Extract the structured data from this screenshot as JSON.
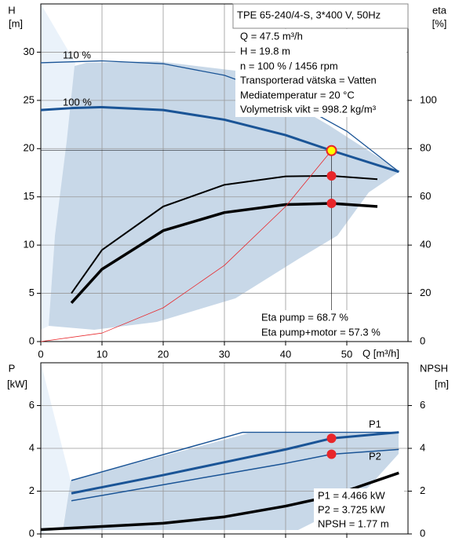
{
  "chart_data": [
    {
      "type": "line",
      "xlabel": "Q [m³/h]",
      "ylabel": [
        "H",
        "[m]"
      ],
      "y2label": [
        "eta",
        "[%]"
      ],
      "xlim": [
        0,
        60
      ],
      "ylim": [
        0,
        35
      ],
      "y2lim": [
        0,
        140
      ],
      "xticks": [
        0,
        10,
        20,
        30,
        40,
        50
      ],
      "yticks": [
        0,
        5,
        10,
        15,
        20,
        25,
        30
      ],
      "y2ticks": [
        0,
        20,
        40,
        60,
        80,
        100
      ],
      "grid": true,
      "xtick_labels": true,
      "series": [
        {
          "name": "110 %",
          "color": "#1a5496",
          "width": 1.3,
          "x": [
            0,
            10,
            20,
            30,
            40,
            50,
            58.5
          ],
          "values": [
            28.9,
            29.1,
            28.8,
            27.6,
            25.3,
            21.8,
            17.6
          ]
        },
        {
          "name": "100 %",
          "color": "#1a5496",
          "width": 3,
          "x": [
            0,
            5,
            10,
            20,
            30,
            40,
            47.5,
            58.5
          ],
          "values": [
            24,
            24.2,
            24.3,
            24,
            23,
            21.4,
            19.8,
            17.6
          ]
        },
        {
          "axis": "y2",
          "color": "#000000",
          "width": 2,
          "x": [
            5,
            10,
            20,
            30,
            40,
            47.5,
            55
          ],
          "values": [
            20,
            38,
            56,
            65,
            68.5,
            68.7,
            67.3
          ]
        },
        {
          "axis": "y2",
          "color": "#000000",
          "width": 3.5,
          "x": [
            5,
            10,
            20,
            30,
            40,
            47.5,
            55
          ],
          "values": [
            16,
            30,
            46,
            53.5,
            56.8,
            57.3,
            56
          ]
        },
        {
          "color": "#e8262a",
          "width": 0.8,
          "x": [
            0,
            10,
            20,
            30,
            40,
            47.5
          ],
          "values": [
            0,
            0.88,
            3.5,
            7.9,
            14,
            19.8
          ]
        }
      ],
      "points": [
        {
          "x": 47.5,
          "y": 19.8,
          "color": "#ffff00"
        },
        {
          "x": 47.5,
          "y": 68.7,
          "axis": "y2",
          "color": "#e8262a"
        },
        {
          "x": 47.5,
          "y": 57.3,
          "axis": "y2",
          "color": "#e8262a"
        }
      ],
      "annotations": [
        "TPE 65-240/4-S, 3*400 V, 50Hz",
        "Q = 47.5 m³/h",
        "H = 19.8 m",
        "n = 100 % / 1456 rpm",
        "Transporterad vätska = Vatten",
        "Mediatemperatur = 20 °C",
        "Volymetrisk vikt = 998.2 kg/m³",
        "Eta pump = 68.7 %",
        "Eta pump+motor = 57.3 %"
      ]
    },
    {
      "type": "line",
      "ylabel": [
        "P",
        "[kW]"
      ],
      "y2label": [
        "NPSH",
        "[m]"
      ],
      "xlim": [
        0,
        60
      ],
      "ylim": [
        0,
        8
      ],
      "y2lim": [
        0,
        8
      ],
      "xticks": [
        0,
        10,
        20,
        30,
        40,
        50
      ],
      "yticks": [
        0,
        2,
        4,
        6
      ],
      "y2ticks": [
        0,
        2,
        4,
        6
      ],
      "grid": true,
      "xtick_labels": false,
      "series": [
        {
          "name": "P1",
          "color": "#1a5496",
          "width": 3,
          "x": [
            5,
            20,
            30,
            40,
            47.5,
            58.5
          ],
          "values": [
            1.9,
            2.75,
            3.35,
            3.95,
            4.466,
            4.75
          ]
        },
        {
          "name": "P2",
          "color": "#1a5496",
          "width": 1.5,
          "x": [
            5,
            20,
            30,
            40,
            47.5,
            58.5
          ],
          "values": [
            1.55,
            2.3,
            2.8,
            3.3,
            3.725,
            3.95
          ]
        },
        {
          "color": "#1a5496",
          "width": 1.5,
          "x": [
            5,
            33,
            58.5
          ],
          "values": [
            2.5,
            4.75,
            4.75
          ]
        },
        {
          "axis": "y2",
          "color": "#000000",
          "width": 3.5,
          "x": [
            0,
            10,
            20,
            30,
            40,
            47.5,
            58.5
          ],
          "values": [
            0.2,
            0.35,
            0.5,
            0.8,
            1.3,
            1.77,
            2.85
          ]
        }
      ],
      "points": [
        {
          "x": 47.5,
          "y": 4.466,
          "color": "#e8262a"
        },
        {
          "x": 47.5,
          "y": 3.725,
          "color": "#e8262a"
        }
      ],
      "annotations": [
        "P1 = 4.466 kW",
        "P2 = 3.725 kW",
        "NPSH = 1.77 m"
      ]
    }
  ]
}
